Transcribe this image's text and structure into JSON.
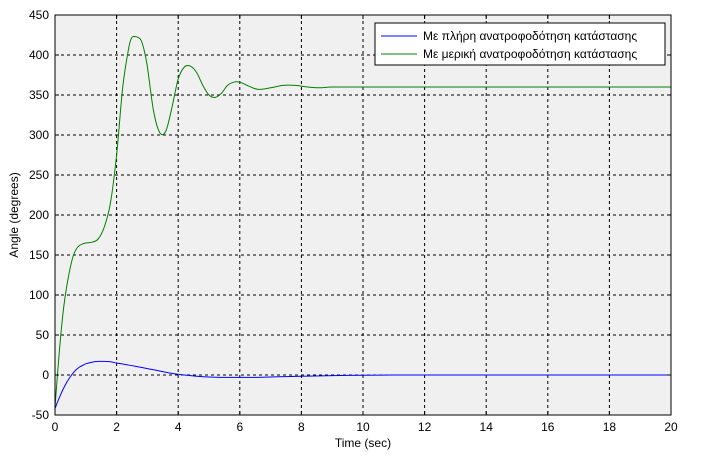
{
  "chart_data": {
    "type": "line",
    "xlabel": "Time (sec)",
    "ylabel": "Angle (degrees)",
    "xlim": [
      0,
      20
    ],
    "ylim": [
      -50,
      450
    ],
    "xticks": [
      0,
      2,
      4,
      6,
      8,
      10,
      12,
      14,
      16,
      18,
      20
    ],
    "yticks": [
      -50,
      0,
      50,
      100,
      150,
      200,
      250,
      300,
      350,
      400,
      450
    ],
    "grid": true,
    "legend_position": "top-right",
    "series": [
      {
        "name": "Με πλήρη ανατροφοδότηση κατάστασης",
        "color": "#0000ff",
        "x": [
          0,
          0.1,
          0.2,
          0.3,
          0.4,
          0.5,
          0.6,
          0.7,
          0.8,
          0.9,
          1.0,
          1.2,
          1.4,
          1.6,
          1.8,
          2.0,
          2.3,
          2.6,
          3.0,
          3.4,
          3.8,
          4.2,
          4.6,
          5.0,
          5.5,
          6.0,
          6.5,
          7.0,
          7.5,
          8.0,
          9.0,
          10.0,
          11.0,
          12.0,
          14.0,
          16.0,
          18.0,
          20.0
        ],
        "y": [
          -42,
          -32,
          -23,
          -15,
          -8,
          -2,
          3,
          7,
          10,
          12,
          14,
          16,
          17,
          17,
          16.5,
          15,
          13,
          11,
          8,
          5,
          2,
          0,
          -1.5,
          -2.5,
          -3,
          -3,
          -3,
          -2.5,
          -2,
          -1.5,
          -0.8,
          -0.3,
          0,
          0,
          0,
          0,
          0,
          0
        ]
      },
      {
        "name": "Με μερική ανατροφοδότηση κατάστασης",
        "color": "#008000",
        "x": [
          0,
          0.1,
          0.2,
          0.3,
          0.4,
          0.5,
          0.6,
          0.7,
          0.8,
          0.9,
          1.0,
          1.2,
          1.4,
          1.6,
          1.8,
          2.0,
          2.2,
          2.4,
          2.5,
          2.6,
          2.7,
          2.8,
          2.9,
          3.0,
          3.2,
          3.4,
          3.6,
          3.8,
          4.0,
          4.2,
          4.4,
          4.6,
          4.8,
          5.0,
          5.2,
          5.4,
          5.6,
          5.8,
          6.0,
          6.3,
          6.6,
          7.0,
          7.4,
          7.8,
          8.2,
          8.6,
          9.0,
          10.0,
          12.0,
          14.0,
          16.0,
          18.0,
          20.0
        ],
        "y": [
          -40,
          10,
          55,
          90,
          115,
          135,
          150,
          158,
          162,
          164,
          165,
          166,
          170,
          185,
          215,
          275,
          360,
          410,
          422,
          423,
          422,
          418,
          405,
          385,
          330,
          303,
          305,
          335,
          370,
          385,
          386,
          378,
          362,
          350,
          347,
          352,
          362,
          366,
          366,
          361,
          357,
          359,
          362,
          362,
          360,
          359,
          360,
          360,
          360,
          360,
          360,
          360,
          360
        ]
      }
    ]
  }
}
